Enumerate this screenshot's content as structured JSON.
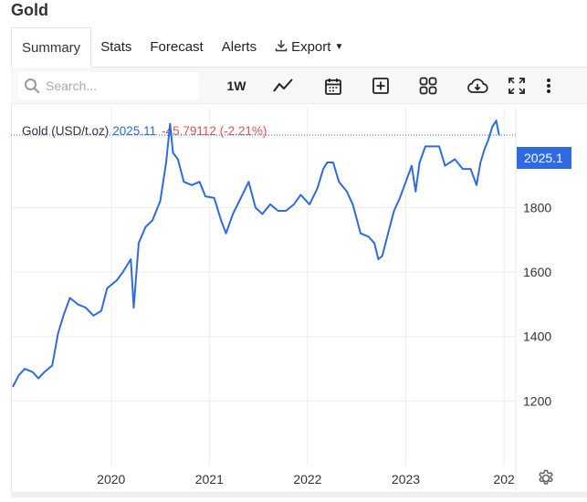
{
  "page": {
    "title": "Gold"
  },
  "tabs": [
    {
      "label": "Summary",
      "active": true
    },
    {
      "label": "Stats"
    },
    {
      "label": "Forecast"
    },
    {
      "label": "Alerts"
    },
    {
      "label": "Export",
      "icon": "download-icon",
      "dropdown": true
    }
  ],
  "toolbar": {
    "search_placeholder": "Search...",
    "interval": "1W",
    "buttons": [
      "line-chart-icon",
      "calendar-icon",
      "add-indicator-icon",
      "grid-layout-icon",
      "cloud-download-icon",
      "fullscreen-icon",
      "more-vertical-icon"
    ]
  },
  "legend": {
    "name": "Gold (USD/t.oz)",
    "value": "2025.11",
    "change": "-45.79112 (-2.21%)"
  },
  "price_tag": "2025.1",
  "colors": {
    "line": "#2f6ae0",
    "accent": "#2f6ae0",
    "negative": "#e25555",
    "grid": "#ededed"
  },
  "chart_data": {
    "type": "line",
    "series": [
      {
        "name": "Gold (USD/t.oz)",
        "x": [
          2019.0,
          2019.06,
          2019.12,
          2019.2,
          2019.26,
          2019.32,
          2019.4,
          2019.46,
          2019.52,
          2019.58,
          2019.66,
          2019.74,
          2019.82,
          2019.9,
          2019.96,
          2020.06,
          2020.12,
          2020.2,
          2020.23,
          2020.28,
          2020.35,
          2020.42,
          2020.5,
          2020.56,
          2020.6,
          2020.63,
          2020.68,
          2020.74,
          2020.82,
          2020.9,
          2020.96,
          2021.05,
          2021.12,
          2021.17,
          2021.24,
          2021.32,
          2021.4,
          2021.47,
          2021.54,
          2021.62,
          2021.7,
          2021.78,
          2021.86,
          2021.93,
          2022.02,
          2022.1,
          2022.16,
          2022.2,
          2022.26,
          2022.32,
          2022.4,
          2022.46,
          2022.54,
          2022.62,
          2022.68,
          2022.72,
          2022.76,
          2022.82,
          2022.88,
          2022.94,
          2023.0,
          2023.06,
          2023.1,
          2023.14,
          2023.2,
          2023.26,
          2023.34,
          2023.4,
          2023.5,
          2023.58,
          2023.66,
          2023.72,
          2023.76,
          2023.8,
          2023.84,
          2023.88,
          2023.92,
          2023.95
        ],
        "y": [
          1245,
          1280,
          1300,
          1290,
          1270,
          1290,
          1310,
          1410,
          1470,
          1520,
          1500,
          1490,
          1465,
          1480,
          1550,
          1575,
          1600,
          1640,
          1490,
          1690,
          1740,
          1760,
          1820,
          1940,
          2060,
          1970,
          1950,
          1880,
          1870,
          1880,
          1835,
          1830,
          1760,
          1720,
          1780,
          1830,
          1880,
          1800,
          1780,
          1810,
          1790,
          1790,
          1810,
          1840,
          1810,
          1860,
          1920,
          1940,
          1940,
          1880,
          1850,
          1810,
          1720,
          1710,
          1690,
          1640,
          1650,
          1720,
          1790,
          1830,
          1880,
          1930,
          1850,
          1940,
          1990,
          1990,
          1990,
          1930,
          1950,
          1920,
          1920,
          1870,
          1940,
          1980,
          2010,
          2050,
          2070,
          2025.11
        ]
      }
    ],
    "xlabel": "",
    "ylabel": "",
    "xticks": [
      "2020",
      "2021",
      "2022",
      "2023",
      "202"
    ],
    "yticks": [
      1200,
      1400,
      1600,
      1800
    ],
    "ylim": [
      1000,
      2110
    ],
    "xlim": [
      2018.98,
      2024.12
    ],
    "last_value": 2025.11,
    "grid": true
  }
}
